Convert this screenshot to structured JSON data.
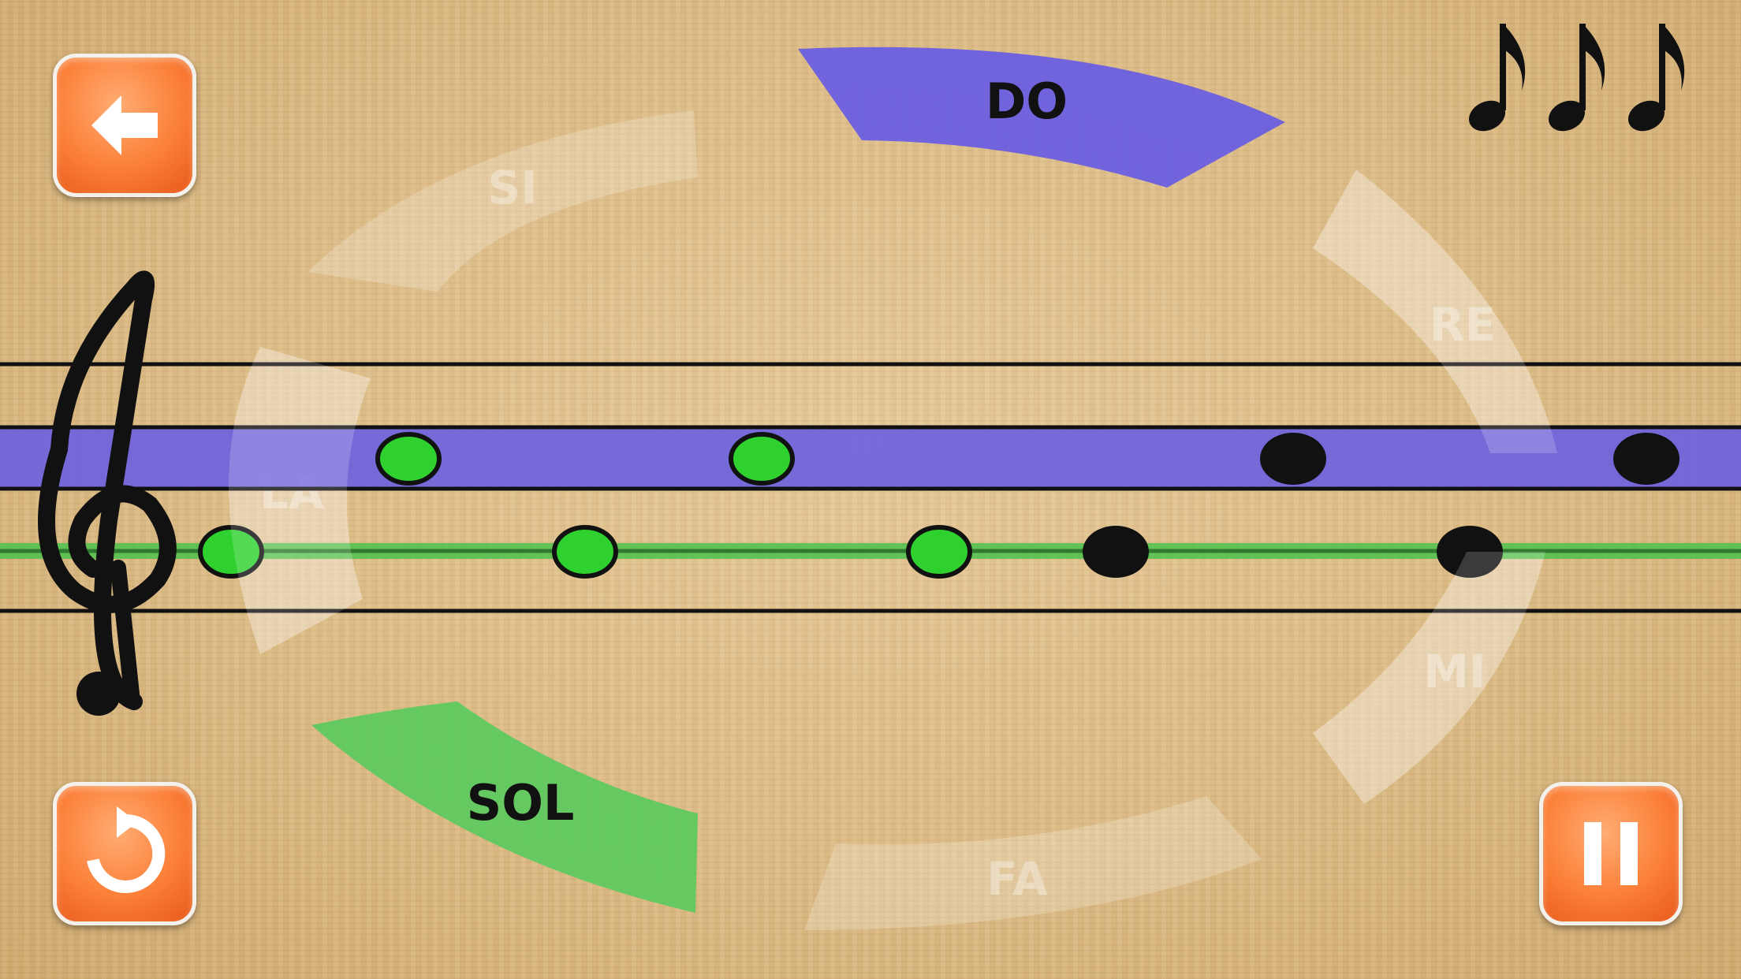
{
  "wheel": {
    "active_labels": {
      "do": "DO",
      "sol": "SOL"
    },
    "faded_labels": {
      "re": "RE",
      "mi": "MI",
      "fa": "FA",
      "la": "LA",
      "si": "SI"
    },
    "colors": {
      "do": "#6a5fe0",
      "sol": "#5fc95f"
    }
  },
  "lives": {
    "count": 3,
    "icon": "eighth-note-icon"
  },
  "staff": {
    "highlight_do_color": "#6a5fe0",
    "highlight_sol_color": "#4cc24c",
    "notes_do": [
      "green",
      "green",
      "black",
      "black"
    ],
    "notes_sol": [
      "green",
      "green",
      "green",
      "black",
      "black"
    ]
  },
  "buttons": {
    "back_icon": "arrow-left-icon",
    "restart_icon": "restart-icon",
    "pause_icon": "pause-icon"
  }
}
